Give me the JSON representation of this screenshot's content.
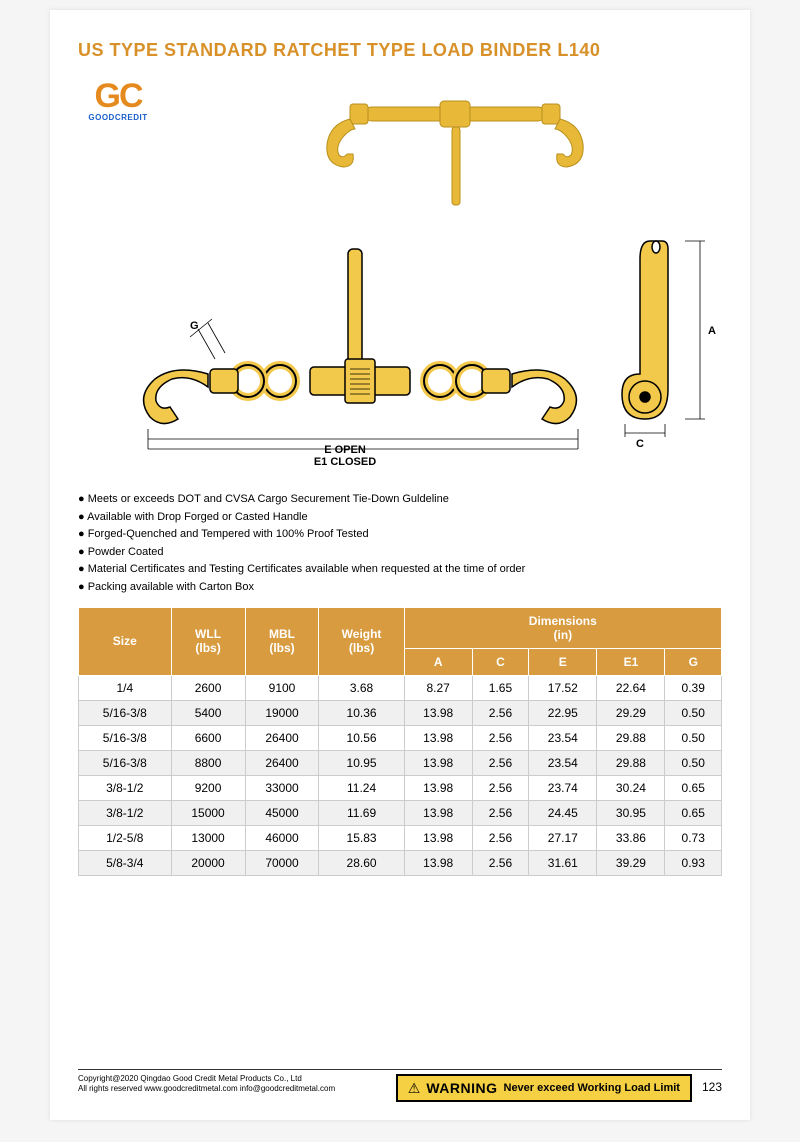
{
  "title": "US TYPE STANDARD RATCHET TYPE LOAD BINDER L140",
  "logo": {
    "main": "GC",
    "sub": "GOODCREDIT"
  },
  "diagram_labels": {
    "g": "G",
    "e_open": "E OPEN",
    "e_closed": "E1 CLOSED",
    "a": "A",
    "c": "C"
  },
  "features": [
    "Meets or exceeds DOT and CVSA Cargo Securement Tie-Down Guldeline",
    "Available with Drop Forged or Casted Handle",
    "Forged-Quenched and Tempered with 100% Proof Tested",
    "Powder Coated",
    "Material Certificates and Testing Certificates available when requested at the time of order",
    "Packing available with Carton Box"
  ],
  "table": {
    "header_main": [
      "Size",
      "WLL\n(lbs)",
      "MBL\n(lbs)",
      "Weight\n(lbs)"
    ],
    "header_dim_group": "Dimensions\n(in)",
    "header_dims": [
      "A",
      "C",
      "E",
      "E1",
      "G"
    ],
    "rows": [
      [
        "1/4",
        "2600",
        "9100",
        "3.68",
        "8.27",
        "1.65",
        "17.52",
        "22.64",
        "0.39"
      ],
      [
        "5/16-3/8",
        "5400",
        "19000",
        "10.36",
        "13.98",
        "2.56",
        "22.95",
        "29.29",
        "0.50"
      ],
      [
        "5/16-3/8",
        "6600",
        "26400",
        "10.56",
        "13.98",
        "2.56",
        "23.54",
        "29.88",
        "0.50"
      ],
      [
        "5/16-3/8",
        "8800",
        "26400",
        "10.95",
        "13.98",
        "2.56",
        "23.54",
        "29.88",
        "0.50"
      ],
      [
        "3/8-1/2",
        "9200",
        "33000",
        "11.24",
        "13.98",
        "2.56",
        "23.74",
        "30.24",
        "0.65"
      ],
      [
        "3/8-1/2",
        "15000",
        "45000",
        "11.69",
        "13.98",
        "2.56",
        "24.45",
        "30.95",
        "0.65"
      ],
      [
        "1/2-5/8",
        "13000",
        "46000",
        "15.83",
        "13.98",
        "2.56",
        "27.17",
        "33.86",
        "0.73"
      ],
      [
        "5/8-3/4",
        "20000",
        "70000",
        "28.60",
        "13.98",
        "2.56",
        "31.61",
        "39.29",
        "0.93"
      ]
    ]
  },
  "footer": {
    "copyright": "Copyright@2020 Qingdao Good Credit Metal Products Co., Ltd",
    "rights": "All rights reserved    www.goodcreditmetal.com    info@goodcreditmetal.com",
    "warning_label": "WARNING",
    "warning_text": "Never exceed Working Load Limit",
    "page": "123"
  },
  "colors": {
    "accent": "#d89028",
    "table_header": "#d89b3f",
    "product": "#e8b838",
    "logo_orange": "#e58a1f",
    "logo_blue": "#1a5fc9",
    "warn_bg": "#f5d042"
  }
}
